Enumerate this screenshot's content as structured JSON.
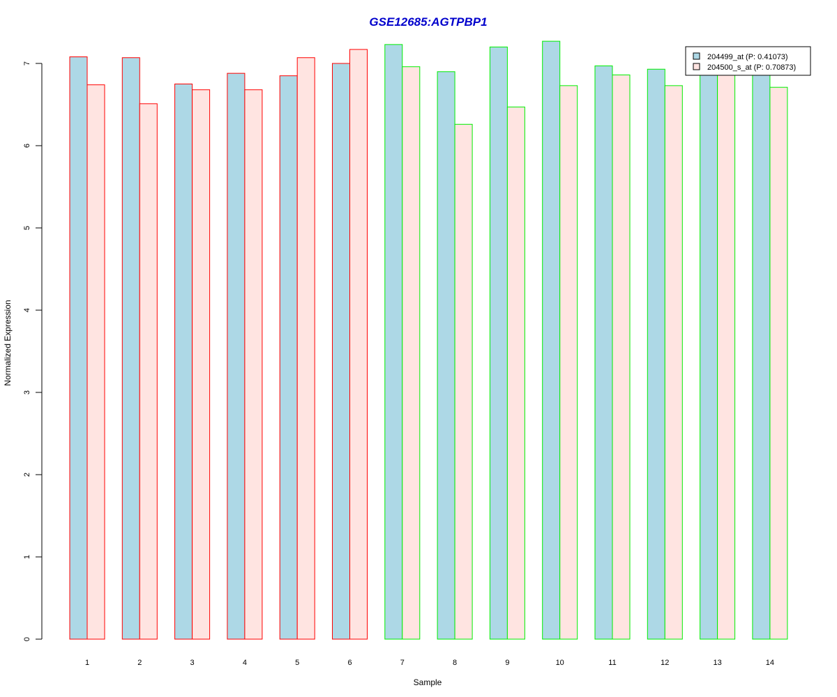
{
  "chart_data": {
    "type": "bar",
    "title": "GSE12685:AGTPBP1",
    "xlabel": "Sample",
    "ylabel": "Normalized Expression",
    "ylim": [
      0,
      7.3
    ],
    "y_ticks": [
      "0",
      "1",
      "2",
      "3",
      "4",
      "5",
      "6",
      "7"
    ],
    "categories": [
      "1",
      "2",
      "3",
      "4",
      "5",
      "6",
      "7",
      "8",
      "9",
      "10",
      "11",
      "12",
      "13",
      "14"
    ],
    "series": [
      {
        "name": "204499_at (P: 0.41073)",
        "fill": "#add8e6",
        "values": [
          7.08,
          7.07,
          6.75,
          6.88,
          6.85,
          7.0,
          7.23,
          6.9,
          7.2,
          7.27,
          6.97,
          6.93,
          6.89,
          6.9
        ]
      },
      {
        "name": "204500_s_at (P: 0.70873)",
        "fill": "#ffe4e1",
        "values": [
          6.74,
          6.51,
          6.68,
          6.68,
          7.07,
          7.17,
          6.96,
          6.26,
          6.47,
          6.73,
          6.86,
          6.73,
          6.9,
          6.71
        ]
      }
    ],
    "group_border_colors": [
      "#ff0000",
      "#ff0000",
      "#ff0000",
      "#ff0000",
      "#ff0000",
      "#ff0000",
      "#00ee00",
      "#00ee00",
      "#00ee00",
      "#00ee00",
      "#00ee00",
      "#00ee00",
      "#00ee00",
      "#00ee00"
    ],
    "title_color": "#0000cc",
    "legend_position": "top-right",
    "grid": false
  }
}
